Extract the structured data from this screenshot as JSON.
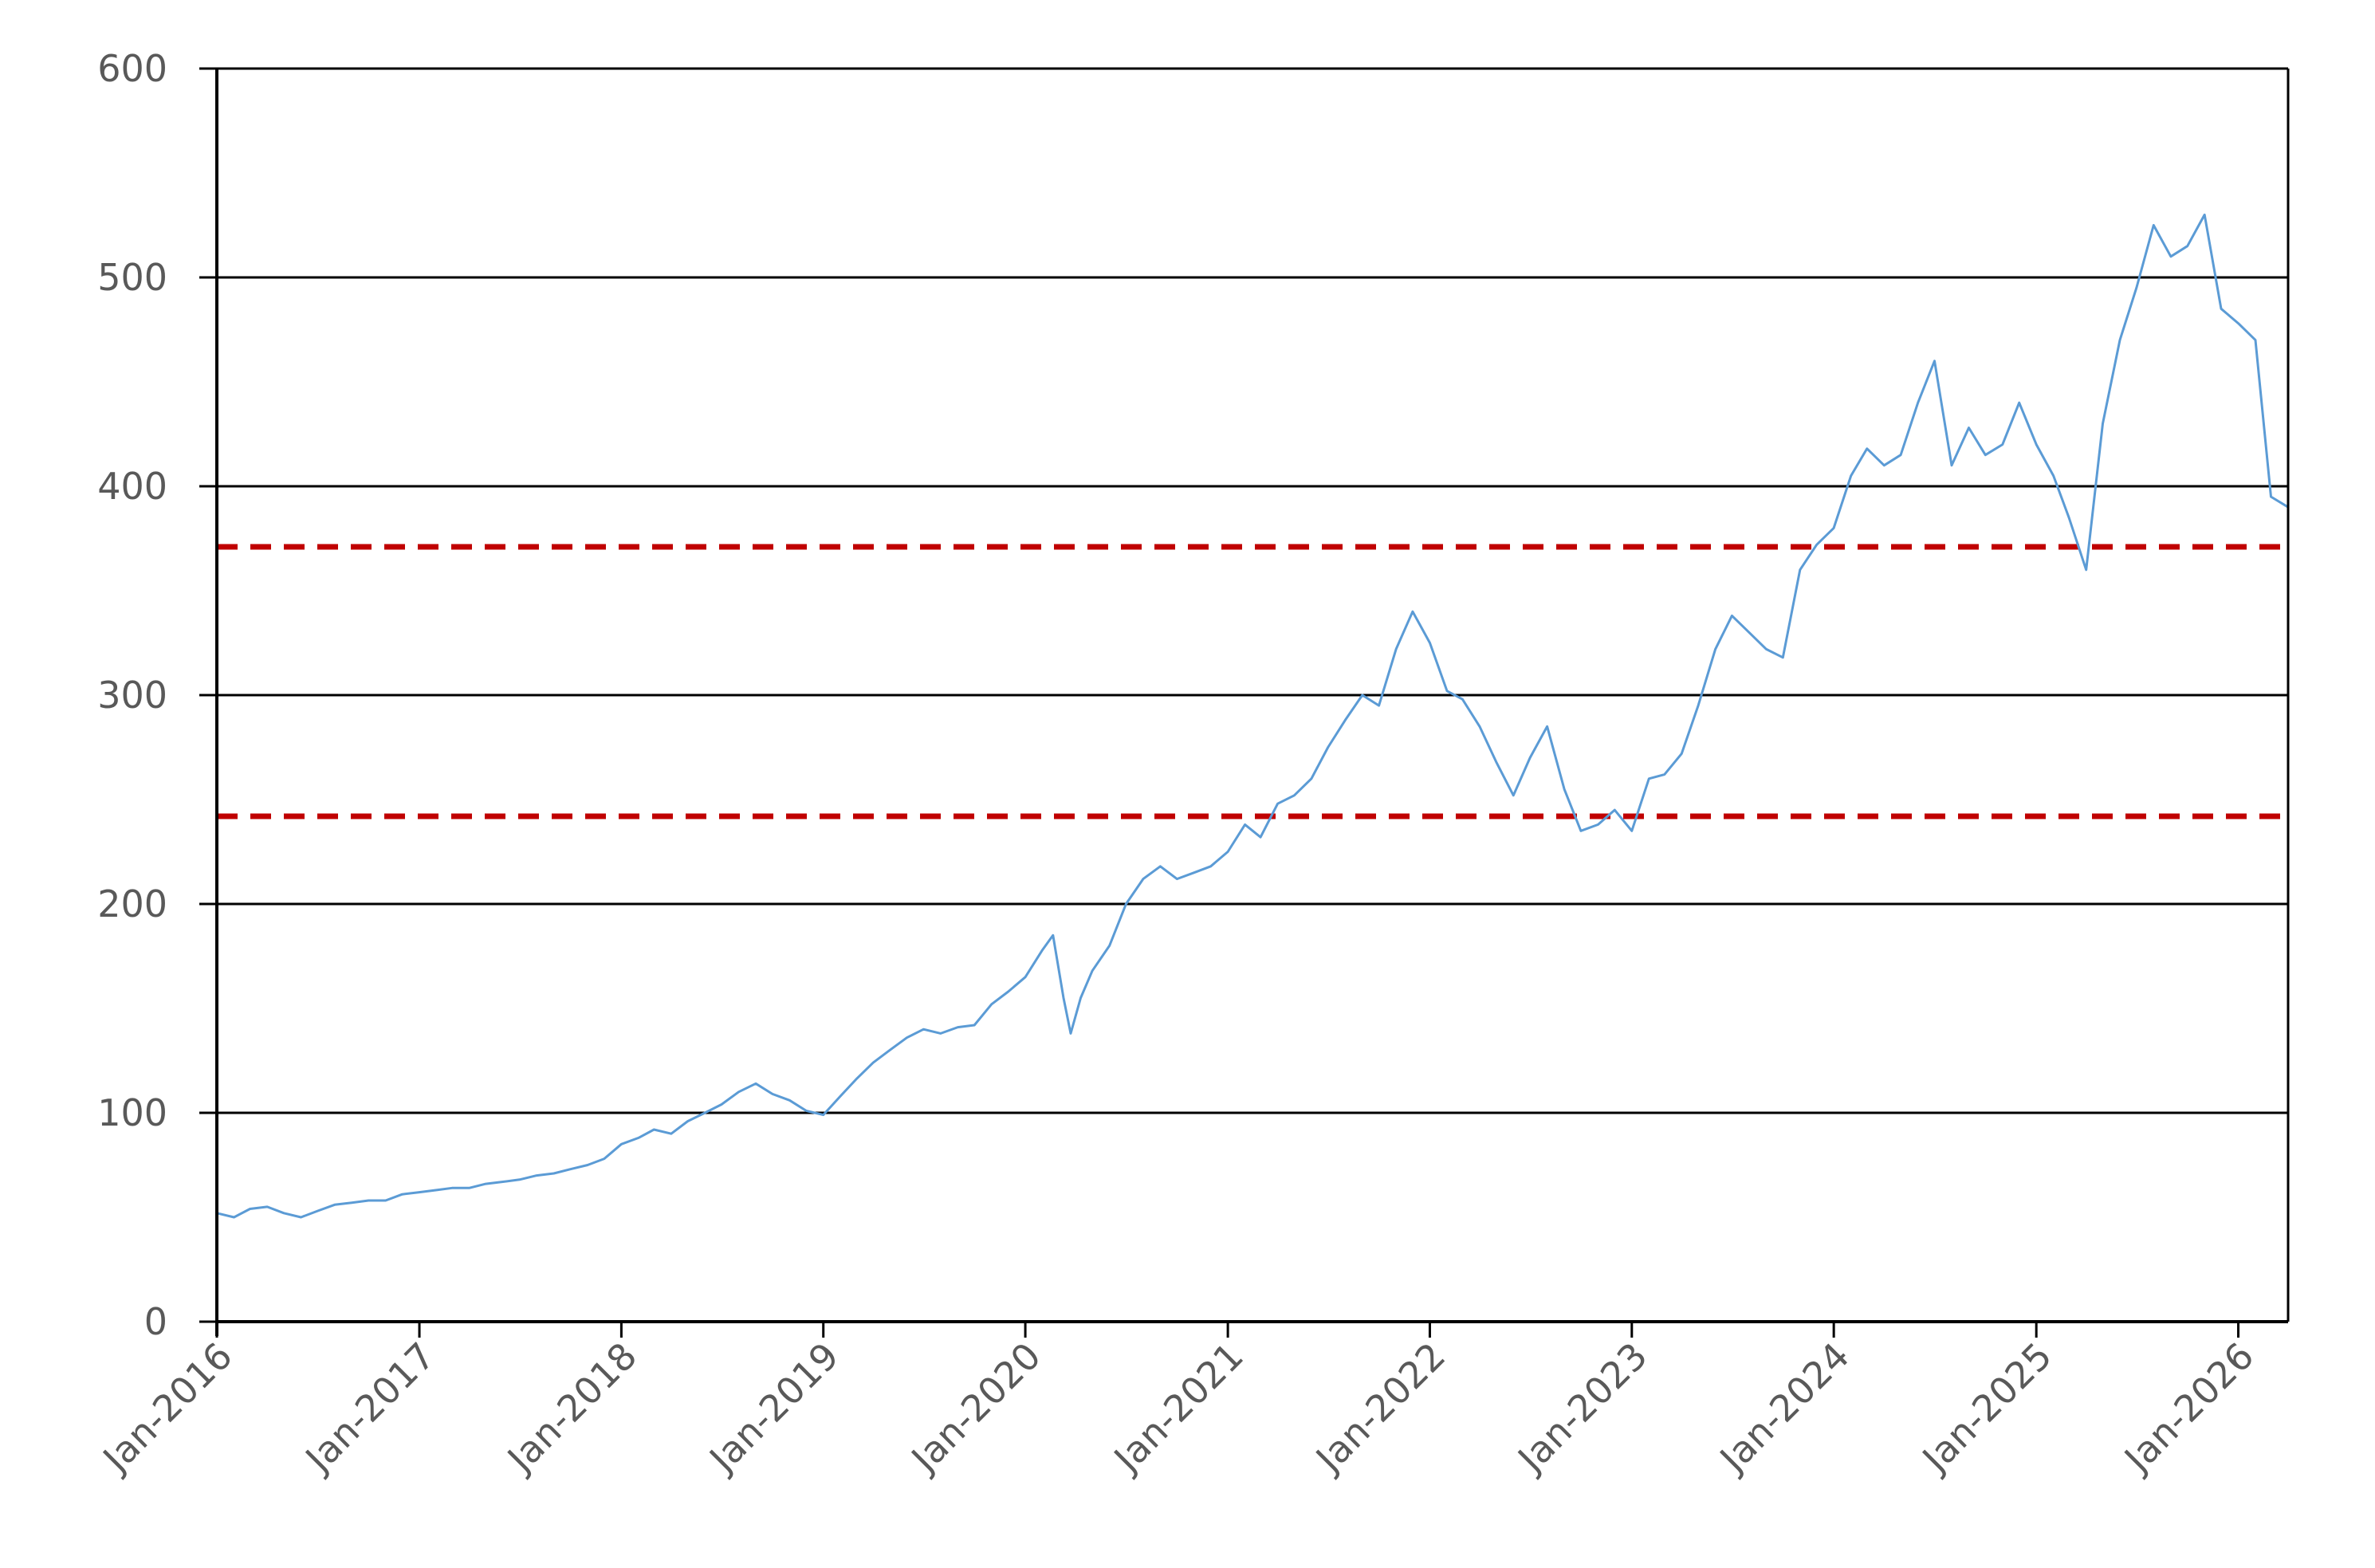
{
  "chart_data": {
    "type": "line",
    "title": "",
    "xlabel": "",
    "ylabel": "",
    "ylim": [
      0,
      600
    ],
    "xlim": [
      "2016-01-01",
      "2026-04-01"
    ],
    "y_ticks": [
      0,
      100,
      200,
      300,
      400,
      500,
      600
    ],
    "x_ticks": [
      {
        "date": "2016-01-01",
        "label": "Jan-2016"
      },
      {
        "date": "2017-01-01",
        "label": "Jan-2017"
      },
      {
        "date": "2018-01-01",
        "label": "Jan-2018"
      },
      {
        "date": "2019-01-01",
        "label": "Jan-2019"
      },
      {
        "date": "2020-01-01",
        "label": "Jan-2020"
      },
      {
        "date": "2021-01-01",
        "label": "Jan-2021"
      },
      {
        "date": "2022-01-01",
        "label": "Jan-2022"
      },
      {
        "date": "2023-01-01",
        "label": "Jan-2023"
      },
      {
        "date": "2024-01-01",
        "label": "Jan-2024"
      },
      {
        "date": "2025-01-01",
        "label": "Jan-2025"
      },
      {
        "date": "2026-01-01",
        "label": "Jan-2026"
      }
    ],
    "grid": "horizontal",
    "legend": "none",
    "series": [
      {
        "color": "#5b9bd5",
        "points": [
          [
            "2016-01-01",
            52
          ],
          [
            "2016-02-01",
            50
          ],
          [
            "2016-03-01",
            54
          ],
          [
            "2016-04-01",
            55
          ],
          [
            "2016-05-01",
            52
          ],
          [
            "2016-06-01",
            50
          ],
          [
            "2016-07-01",
            53
          ],
          [
            "2016-08-01",
            56
          ],
          [
            "2016-09-01",
            57
          ],
          [
            "2016-10-01",
            58
          ],
          [
            "2016-11-01",
            58
          ],
          [
            "2016-12-01",
            61
          ],
          [
            "2017-01-01",
            62
          ],
          [
            "2017-02-01",
            63
          ],
          [
            "2017-03-01",
            64
          ],
          [
            "2017-04-01",
            64
          ],
          [
            "2017-05-01",
            66
          ],
          [
            "2017-06-01",
            67
          ],
          [
            "2017-07-01",
            68
          ],
          [
            "2017-08-01",
            70
          ],
          [
            "2017-09-01",
            71
          ],
          [
            "2017-10-01",
            73
          ],
          [
            "2017-11-01",
            75
          ],
          [
            "2017-12-01",
            78
          ],
          [
            "2018-01-01",
            85
          ],
          [
            "2018-02-01",
            88
          ],
          [
            "2018-03-01",
            92
          ],
          [
            "2018-04-01",
            90
          ],
          [
            "2018-05-01",
            96
          ],
          [
            "2018-06-01",
            100
          ],
          [
            "2018-07-01",
            104
          ],
          [
            "2018-08-01",
            110
          ],
          [
            "2018-09-01",
            114
          ],
          [
            "2018-10-01",
            109
          ],
          [
            "2018-11-01",
            106
          ],
          [
            "2018-12-01",
            101
          ],
          [
            "2019-01-01",
            99
          ],
          [
            "2019-02-01",
            108
          ],
          [
            "2019-03-01",
            116
          ],
          [
            "2019-04-01",
            124
          ],
          [
            "2019-05-01",
            130
          ],
          [
            "2019-06-01",
            136
          ],
          [
            "2019-07-01",
            140
          ],
          [
            "2019-08-01",
            138
          ],
          [
            "2019-09-01",
            141
          ],
          [
            "2019-10-01",
            142
          ],
          [
            "2019-11-01",
            152
          ],
          [
            "2019-12-01",
            158
          ],
          [
            "2020-01-01",
            165
          ],
          [
            "2020-02-01",
            178
          ],
          [
            "2020-02-20",
            185
          ],
          [
            "2020-03-10",
            155
          ],
          [
            "2020-03-23",
            138
          ],
          [
            "2020-04-10",
            155
          ],
          [
            "2020-05-01",
            168
          ],
          [
            "2020-06-01",
            180
          ],
          [
            "2020-07-01",
            200
          ],
          [
            "2020-08-01",
            212
          ],
          [
            "2020-09-01",
            218
          ],
          [
            "2020-10-01",
            212
          ],
          [
            "2020-11-01",
            215
          ],
          [
            "2020-12-01",
            218
          ],
          [
            "2021-01-01",
            225
          ],
          [
            "2021-02-01",
            238
          ],
          [
            "2021-03-01",
            232
          ],
          [
            "2021-04-01",
            248
          ],
          [
            "2021-05-01",
            252
          ],
          [
            "2021-06-01",
            260
          ],
          [
            "2021-07-01",
            275
          ],
          [
            "2021-08-01",
            288
          ],
          [
            "2021-09-01",
            300
          ],
          [
            "2021-10-01",
            295
          ],
          [
            "2021-11-01",
            322
          ],
          [
            "2021-12-01",
            340
          ],
          [
            "2022-01-01",
            325
          ],
          [
            "2022-02-01",
            302
          ],
          [
            "2022-03-01",
            298
          ],
          [
            "2022-04-01",
            285
          ],
          [
            "2022-05-01",
            268
          ],
          [
            "2022-06-01",
            252
          ],
          [
            "2022-07-01",
            270
          ],
          [
            "2022-08-01",
            285
          ],
          [
            "2022-09-01",
            255
          ],
          [
            "2022-10-01",
            235
          ],
          [
            "2022-11-01",
            238
          ],
          [
            "2022-12-01",
            245
          ],
          [
            "2023-01-01",
            235
          ],
          [
            "2023-02-01",
            260
          ],
          [
            "2023-03-01",
            262
          ],
          [
            "2023-04-01",
            272
          ],
          [
            "2023-05-01",
            295
          ],
          [
            "2023-06-01",
            322
          ],
          [
            "2023-07-01",
            338
          ],
          [
            "2023-08-01",
            330
          ],
          [
            "2023-09-01",
            322
          ],
          [
            "2023-10-01",
            318
          ],
          [
            "2023-11-01",
            360
          ],
          [
            "2023-12-01",
            372
          ],
          [
            "2024-01-01",
            380
          ],
          [
            "2024-02-01",
            405
          ],
          [
            "2024-03-01",
            418
          ],
          [
            "2024-04-01",
            410
          ],
          [
            "2024-05-01",
            415
          ],
          [
            "2024-06-01",
            440
          ],
          [
            "2024-07-01",
            460
          ],
          [
            "2024-08-01",
            410
          ],
          [
            "2024-09-01",
            428
          ],
          [
            "2024-10-01",
            415
          ],
          [
            "2024-11-01",
            420
          ],
          [
            "2024-12-01",
            440
          ],
          [
            "2025-01-01",
            420
          ],
          [
            "2025-02-01",
            405
          ],
          [
            "2025-03-01",
            385
          ],
          [
            "2025-04-01",
            360
          ],
          [
            "2025-05-01",
            430
          ],
          [
            "2025-06-01",
            470
          ],
          [
            "2025-07-01",
            495
          ],
          [
            "2025-08-01",
            525
          ],
          [
            "2025-09-01",
            510
          ],
          [
            "2025-10-01",
            515
          ],
          [
            "2025-11-01",
            530
          ],
          [
            "2025-12-01",
            485
          ],
          [
            "2026-01-01",
            478
          ],
          [
            "2026-02-01",
            470
          ],
          [
            "2026-03-01",
            395
          ],
          [
            "2026-04-01",
            390
          ]
        ]
      }
    ],
    "reference_lines": [
      {
        "y": 371,
        "color": "#c00000",
        "style": "dashed"
      },
      {
        "y": 242,
        "color": "#c00000",
        "style": "dashed"
      }
    ]
  }
}
